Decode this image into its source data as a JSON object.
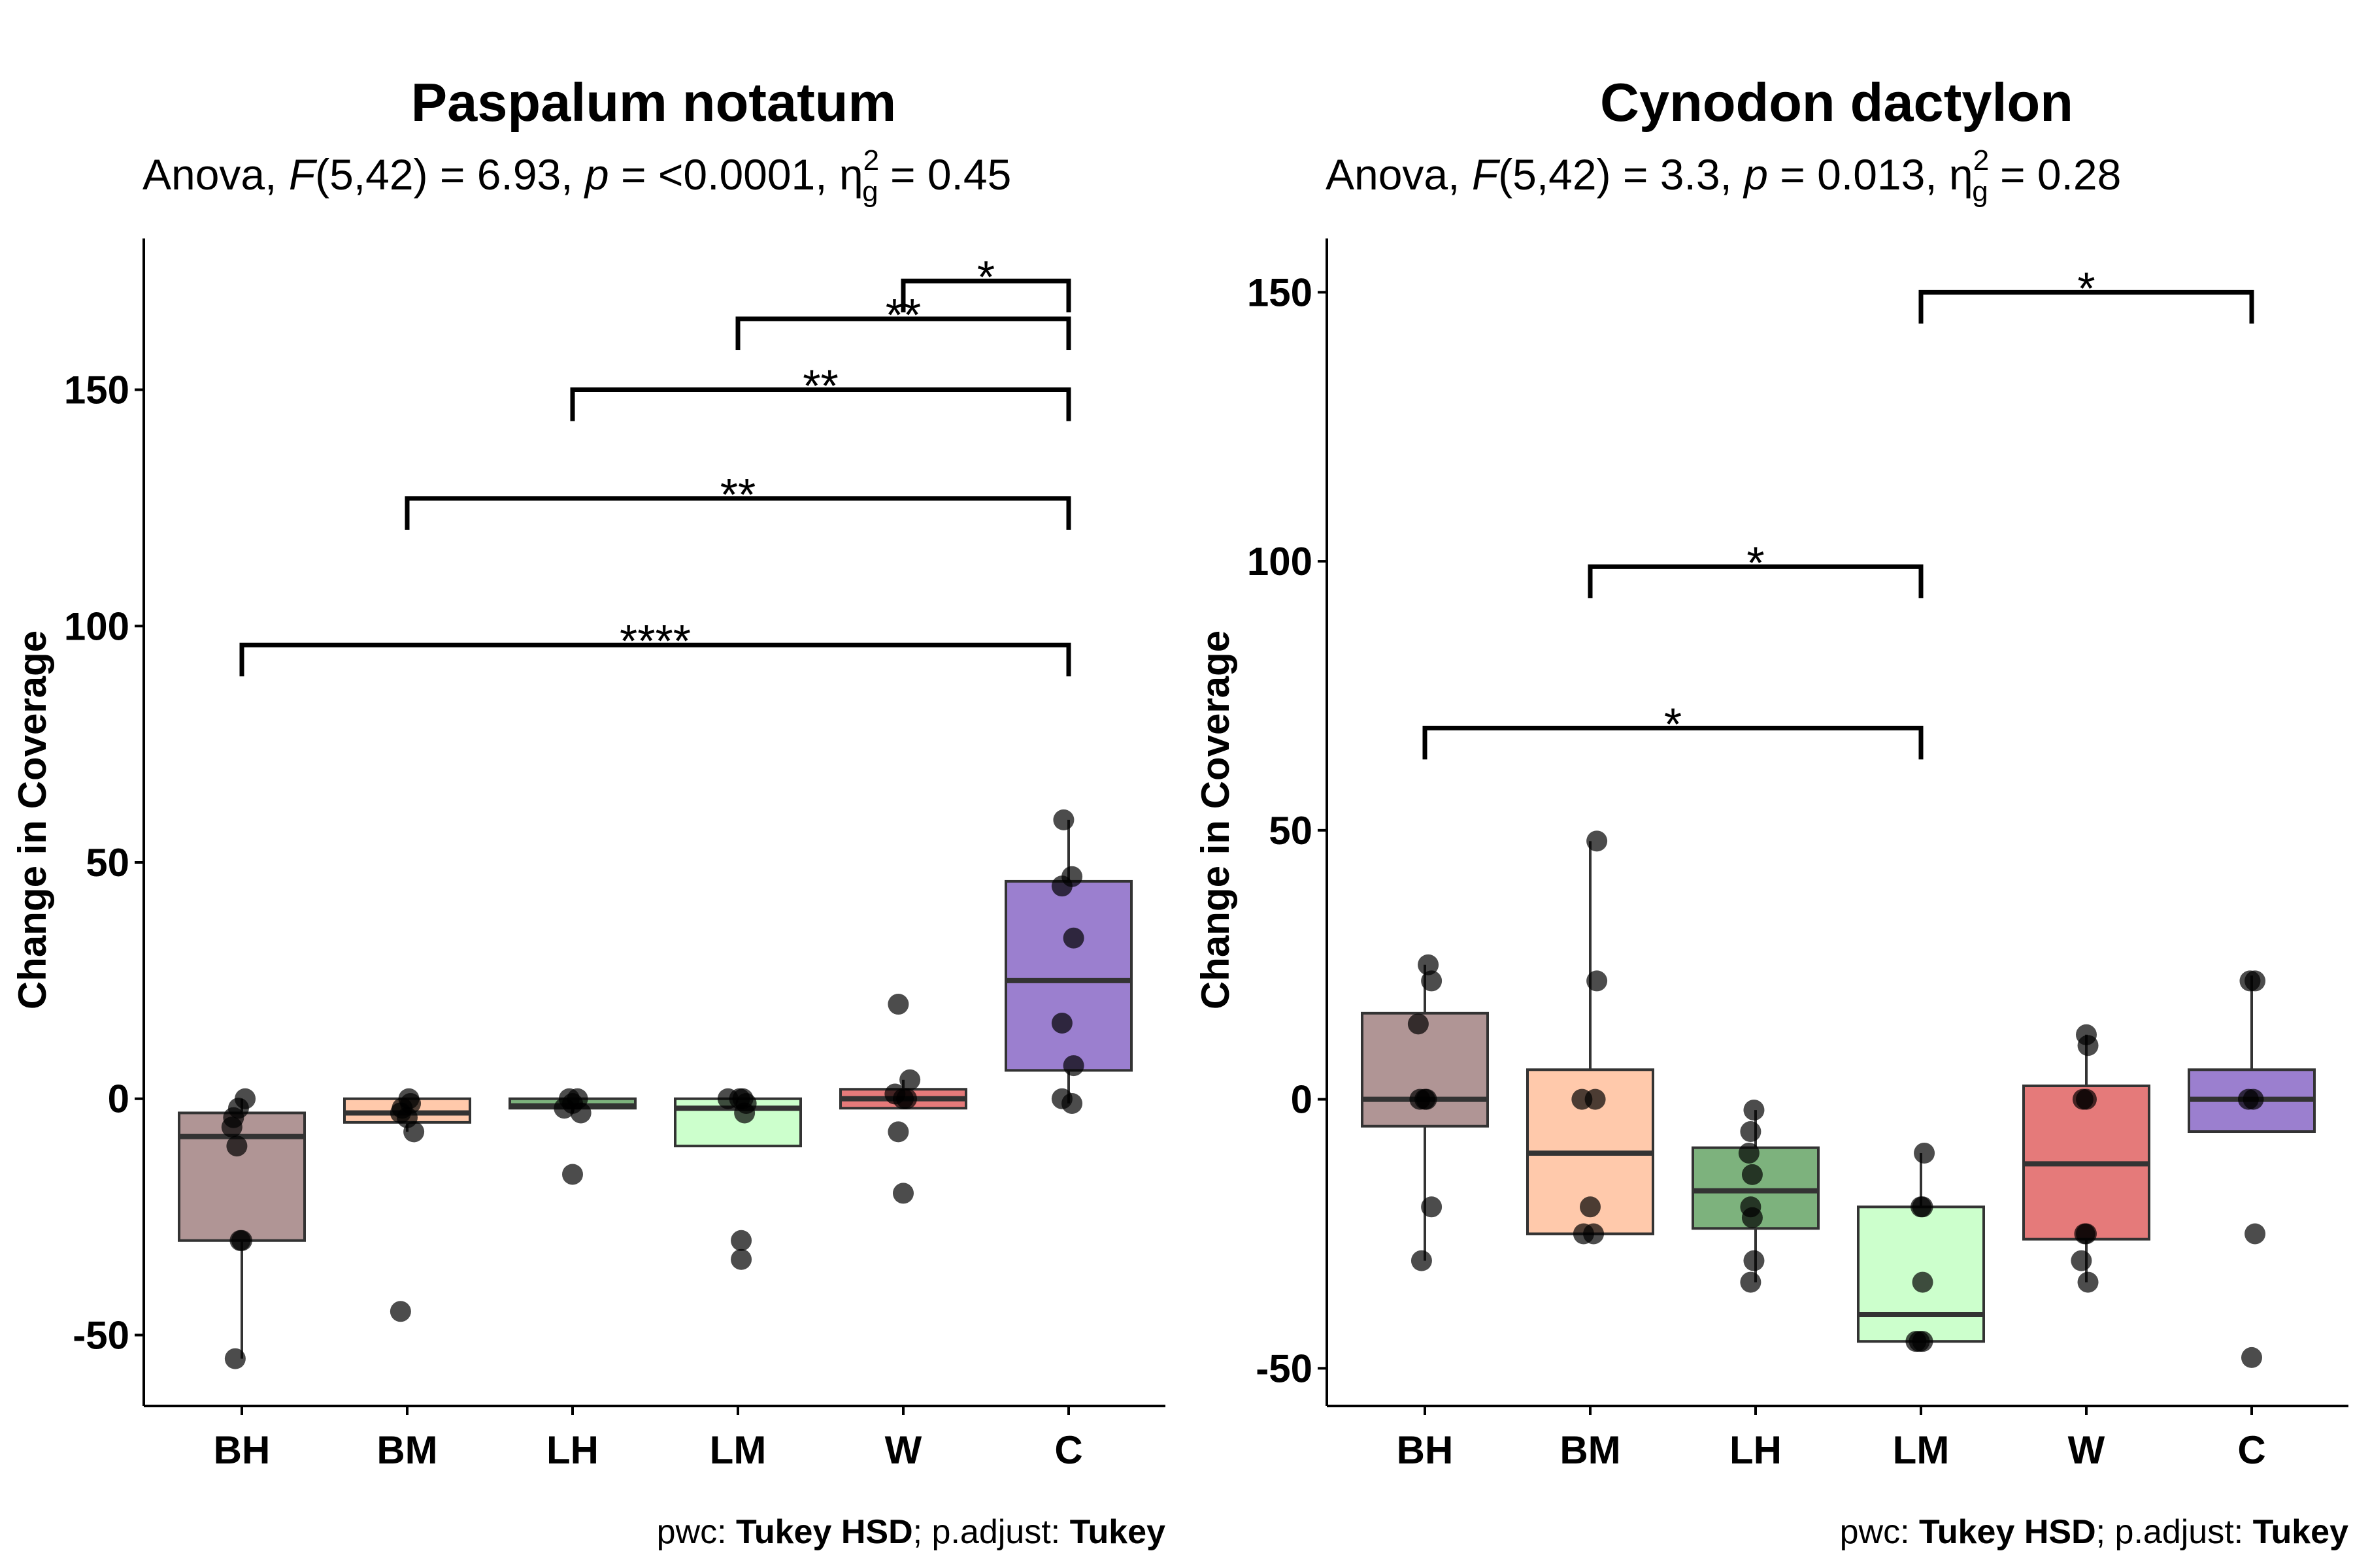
{
  "chart_data": [
    {
      "type": "box",
      "title": "Paspalum notatum",
      "subtitle": {
        "pre": "Anova, ",
        "F": "F",
        "fargs": "(5,42) = 6.93, ",
        "p": "p",
        "pval": " = <0.0001, η",
        "sup": "2",
        "sub": "g",
        "post": " = 0.45"
      },
      "ylabel": "Change in Coverage",
      "ylim": [
        -65,
        182
      ],
      "yticks": [
        -50,
        0,
        50,
        100,
        150
      ],
      "categories": [
        "BH",
        "BM",
        "LH",
        "LM",
        "W",
        "C"
      ],
      "colors": [
        "#b09595",
        "#ffc9ab",
        "#7db27d",
        "#ccffcc",
        "#e57a7a",
        "#9b7fcf"
      ],
      "boxes": [
        {
          "group": "BH",
          "q1": -30,
          "median": -8,
          "q3": -3,
          "whisker_low": -55,
          "whisker_high": 0
        },
        {
          "group": "BM",
          "q1": -5,
          "median": -3,
          "q3": 0,
          "whisker_low": -7,
          "whisker_high": 0
        },
        {
          "group": "LH",
          "q1": -2,
          "median": -1.5,
          "q3": 0,
          "whisker_low": -3,
          "whisker_high": 0
        },
        {
          "group": "LM",
          "q1": -10,
          "median": -2,
          "q3": 0,
          "whisker_low": -10,
          "whisker_high": 0
        },
        {
          "group": "W",
          "q1": -2,
          "median": 0,
          "q3": 2,
          "whisker_low": -2,
          "whisker_high": 4
        },
        {
          "group": "C",
          "q1": 6,
          "median": 25,
          "q3": 46,
          "whisker_low": -1,
          "whisker_high": 59
        }
      ],
      "points": [
        {
          "group": "BH",
          "y": 0,
          "jitter": 0.02
        },
        {
          "group": "BH",
          "y": -2,
          "jitter": -0.02
        },
        {
          "group": "BH",
          "y": -4,
          "jitter": -0.05
        },
        {
          "group": "BH",
          "y": -6,
          "jitter": -0.06
        },
        {
          "group": "BH",
          "y": -10,
          "jitter": -0.03
        },
        {
          "group": "BH",
          "y": -30,
          "jitter": -0.01
        },
        {
          "group": "BH",
          "y": -30,
          "jitter": 0.0
        },
        {
          "group": "BH",
          "y": -55,
          "jitter": -0.04
        },
        {
          "group": "BM",
          "y": 0,
          "jitter": 0.01
        },
        {
          "group": "BM",
          "y": -1,
          "jitter": 0.02
        },
        {
          "group": "BM",
          "y": -2,
          "jitter": -0.03
        },
        {
          "group": "BM",
          "y": -3,
          "jitter": -0.04
        },
        {
          "group": "BM",
          "y": -4,
          "jitter": 0.0
        },
        {
          "group": "BM",
          "y": -7,
          "jitter": 0.04
        },
        {
          "group": "BM",
          "y": -45,
          "jitter": -0.04
        },
        {
          "group": "LH",
          "y": 0,
          "jitter": 0.03
        },
        {
          "group": "LH",
          "y": 0,
          "jitter": -0.02
        },
        {
          "group": "LH",
          "y": -1,
          "jitter": 0.0
        },
        {
          "group": "LH",
          "y": -2,
          "jitter": -0.05
        },
        {
          "group": "LH",
          "y": -3,
          "jitter": 0.05
        },
        {
          "group": "LH",
          "y": -16,
          "jitter": 0.0
        },
        {
          "group": "LM",
          "y": 0,
          "jitter": -0.06
        },
        {
          "group": "LM",
          "y": 0,
          "jitter": 0.01
        },
        {
          "group": "LM",
          "y": 0,
          "jitter": 0.03
        },
        {
          "group": "LM",
          "y": -1,
          "jitter": 0.05
        },
        {
          "group": "LM",
          "y": -3,
          "jitter": 0.04
        },
        {
          "group": "LM",
          "y": -30,
          "jitter": 0.02
        },
        {
          "group": "LM",
          "y": -34,
          "jitter": 0.02
        },
        {
          "group": "W",
          "y": 20,
          "jitter": -0.03
        },
        {
          "group": "W",
          "y": 4,
          "jitter": 0.04
        },
        {
          "group": "W",
          "y": 1,
          "jitter": -0.05
        },
        {
          "group": "W",
          "y": 0,
          "jitter": 0.0
        },
        {
          "group": "W",
          "y": 0,
          "jitter": 0.02
        },
        {
          "group": "W",
          "y": -7,
          "jitter": -0.03
        },
        {
          "group": "W",
          "y": -20,
          "jitter": 0.0
        },
        {
          "group": "C",
          "y": 59,
          "jitter": -0.03
        },
        {
          "group": "C",
          "y": 47,
          "jitter": 0.02
        },
        {
          "group": "C",
          "y": 45,
          "jitter": -0.04
        },
        {
          "group": "C",
          "y": 34,
          "jitter": 0.03
        },
        {
          "group": "C",
          "y": 16,
          "jitter": -0.04
        },
        {
          "group": "C",
          "y": 7,
          "jitter": 0.03
        },
        {
          "group": "C",
          "y": 0,
          "jitter": -0.04
        },
        {
          "group": "C",
          "y": -1,
          "jitter": 0.02
        }
      ],
      "comparisons": [
        {
          "from": "BH",
          "to": "C",
          "y": 96,
          "label": "****"
        },
        {
          "from": "BM",
          "to": "C",
          "y": 127,
          "label": "**"
        },
        {
          "from": "LH",
          "to": "C",
          "y": 150,
          "label": "**"
        },
        {
          "from": "LM",
          "to": "C",
          "y": 165,
          "label": "**"
        },
        {
          "from": "W",
          "to": "C",
          "y": 173,
          "label": "*"
        }
      ],
      "caption": {
        "a": "pwc: ",
        "b": "Tukey HSD",
        "c": "; p.adjust: ",
        "d": "Tukey"
      }
    },
    {
      "type": "box",
      "title": "Cynodon dactylon",
      "subtitle": {
        "pre": "Anova, ",
        "F": "F",
        "fargs": "(5,42) = 3.3, ",
        "p": "p",
        "pval": " = 0.013, η",
        "sup": "2",
        "sub": "g",
        "post": " = 0.28"
      },
      "ylabel": "Change in Coverage",
      "ylim": [
        -57,
        160
      ],
      "yticks": [
        -50,
        0,
        50,
        100,
        150
      ],
      "categories": [
        "BH",
        "BM",
        "LH",
        "LM",
        "W",
        "C"
      ],
      "colors": [
        "#b09595",
        "#ffc9ab",
        "#7db27d",
        "#ccffcc",
        "#e57a7a",
        "#9b7fcf"
      ],
      "boxes": [
        {
          "group": "BH",
          "q1": -5,
          "median": 0,
          "q3": 16,
          "whisker_low": -30,
          "whisker_high": 25
        },
        {
          "group": "BM",
          "q1": -25,
          "median": -10,
          "q3": 5.5,
          "whisker_low": -25,
          "whisker_high": 48
        },
        {
          "group": "LH",
          "q1": -24,
          "median": -17,
          "q3": -9,
          "whisker_low": -34,
          "whisker_high": -2
        },
        {
          "group": "LM",
          "q1": -45,
          "median": -40,
          "q3": -20,
          "whisker_low": -45,
          "whisker_high": -10
        },
        {
          "group": "W",
          "q1": -26,
          "median": -12,
          "q3": 2.5,
          "whisker_low": -34,
          "whisker_high": 12
        },
        {
          "group": "C",
          "q1": -6,
          "median": 0,
          "q3": 5.5,
          "whisker_low": -6,
          "whisker_high": 23
        }
      ],
      "points": [
        {
          "group": "BH",
          "y": 25,
          "jitter": 0.02
        },
        {
          "group": "BH",
          "y": 22,
          "jitter": 0.04
        },
        {
          "group": "BH",
          "y": 14,
          "jitter": -0.04
        },
        {
          "group": "BH",
          "y": 0,
          "jitter": -0.03
        },
        {
          "group": "BH",
          "y": 0,
          "jitter": 0.0
        },
        {
          "group": "BH",
          "y": 0,
          "jitter": 0.01
        },
        {
          "group": "BH",
          "y": -20,
          "jitter": 0.04
        },
        {
          "group": "BH",
          "y": -30,
          "jitter": -0.02
        },
        {
          "group": "BM",
          "y": 48,
          "jitter": 0.04
        },
        {
          "group": "BM",
          "y": 22,
          "jitter": 0.04
        },
        {
          "group": "BM",
          "y": 0,
          "jitter": -0.05
        },
        {
          "group": "BM",
          "y": 0,
          "jitter": 0.03
        },
        {
          "group": "BM",
          "y": -20,
          "jitter": 0.0
        },
        {
          "group": "BM",
          "y": -25,
          "jitter": -0.04
        },
        {
          "group": "BM",
          "y": -25,
          "jitter": 0.02
        },
        {
          "group": "LH",
          "y": -2,
          "jitter": -0.01
        },
        {
          "group": "LH",
          "y": -6,
          "jitter": -0.03
        },
        {
          "group": "LH",
          "y": -10,
          "jitter": -0.04
        },
        {
          "group": "LH",
          "y": -14,
          "jitter": -0.02
        },
        {
          "group": "LH",
          "y": -20,
          "jitter": -0.03
        },
        {
          "group": "LH",
          "y": -22,
          "jitter": -0.02
        },
        {
          "group": "LH",
          "y": -30,
          "jitter": -0.01
        },
        {
          "group": "LH",
          "y": -34,
          "jitter": -0.03
        },
        {
          "group": "LM",
          "y": -10,
          "jitter": 0.02
        },
        {
          "group": "LM",
          "y": -20,
          "jitter": 0.0
        },
        {
          "group": "LM",
          "y": -20,
          "jitter": 0.01
        },
        {
          "group": "LM",
          "y": -34,
          "jitter": 0.01
        },
        {
          "group": "LM",
          "y": -45,
          "jitter": -0.03
        },
        {
          "group": "LM",
          "y": -45,
          "jitter": -0.01
        },
        {
          "group": "LM",
          "y": -45,
          "jitter": 0.01
        },
        {
          "group": "W",
          "y": 12,
          "jitter": 0.0
        },
        {
          "group": "W",
          "y": 10,
          "jitter": 0.01
        },
        {
          "group": "W",
          "y": 0,
          "jitter": -0.02
        },
        {
          "group": "W",
          "y": 0,
          "jitter": 0.0
        },
        {
          "group": "W",
          "y": -25,
          "jitter": -0.01
        },
        {
          "group": "W",
          "y": -25,
          "jitter": 0.0
        },
        {
          "group": "W",
          "y": -30,
          "jitter": -0.03
        },
        {
          "group": "W",
          "y": -34,
          "jitter": 0.01
        },
        {
          "group": "C",
          "y": 22,
          "jitter": -0.01
        },
        {
          "group": "C",
          "y": 22,
          "jitter": 0.02
        },
        {
          "group": "C",
          "y": 0,
          "jitter": -0.02
        },
        {
          "group": "C",
          "y": 0,
          "jitter": 0.01
        },
        {
          "group": "C",
          "y": -25,
          "jitter": 0.02
        },
        {
          "group": "C",
          "y": -48,
          "jitter": 0.0
        }
      ],
      "comparisons": [
        {
          "from": "BH",
          "to": "LM",
          "y": 69,
          "label": "*"
        },
        {
          "from": "BM",
          "to": "LM",
          "y": 99,
          "label": "*"
        },
        {
          "from": "LM",
          "to": "C",
          "y": 150,
          "label": "*"
        }
      ],
      "caption": {
        "a": "pwc: ",
        "b": "Tukey HSD",
        "c": "; p.adjust: ",
        "d": "Tukey"
      }
    }
  ]
}
